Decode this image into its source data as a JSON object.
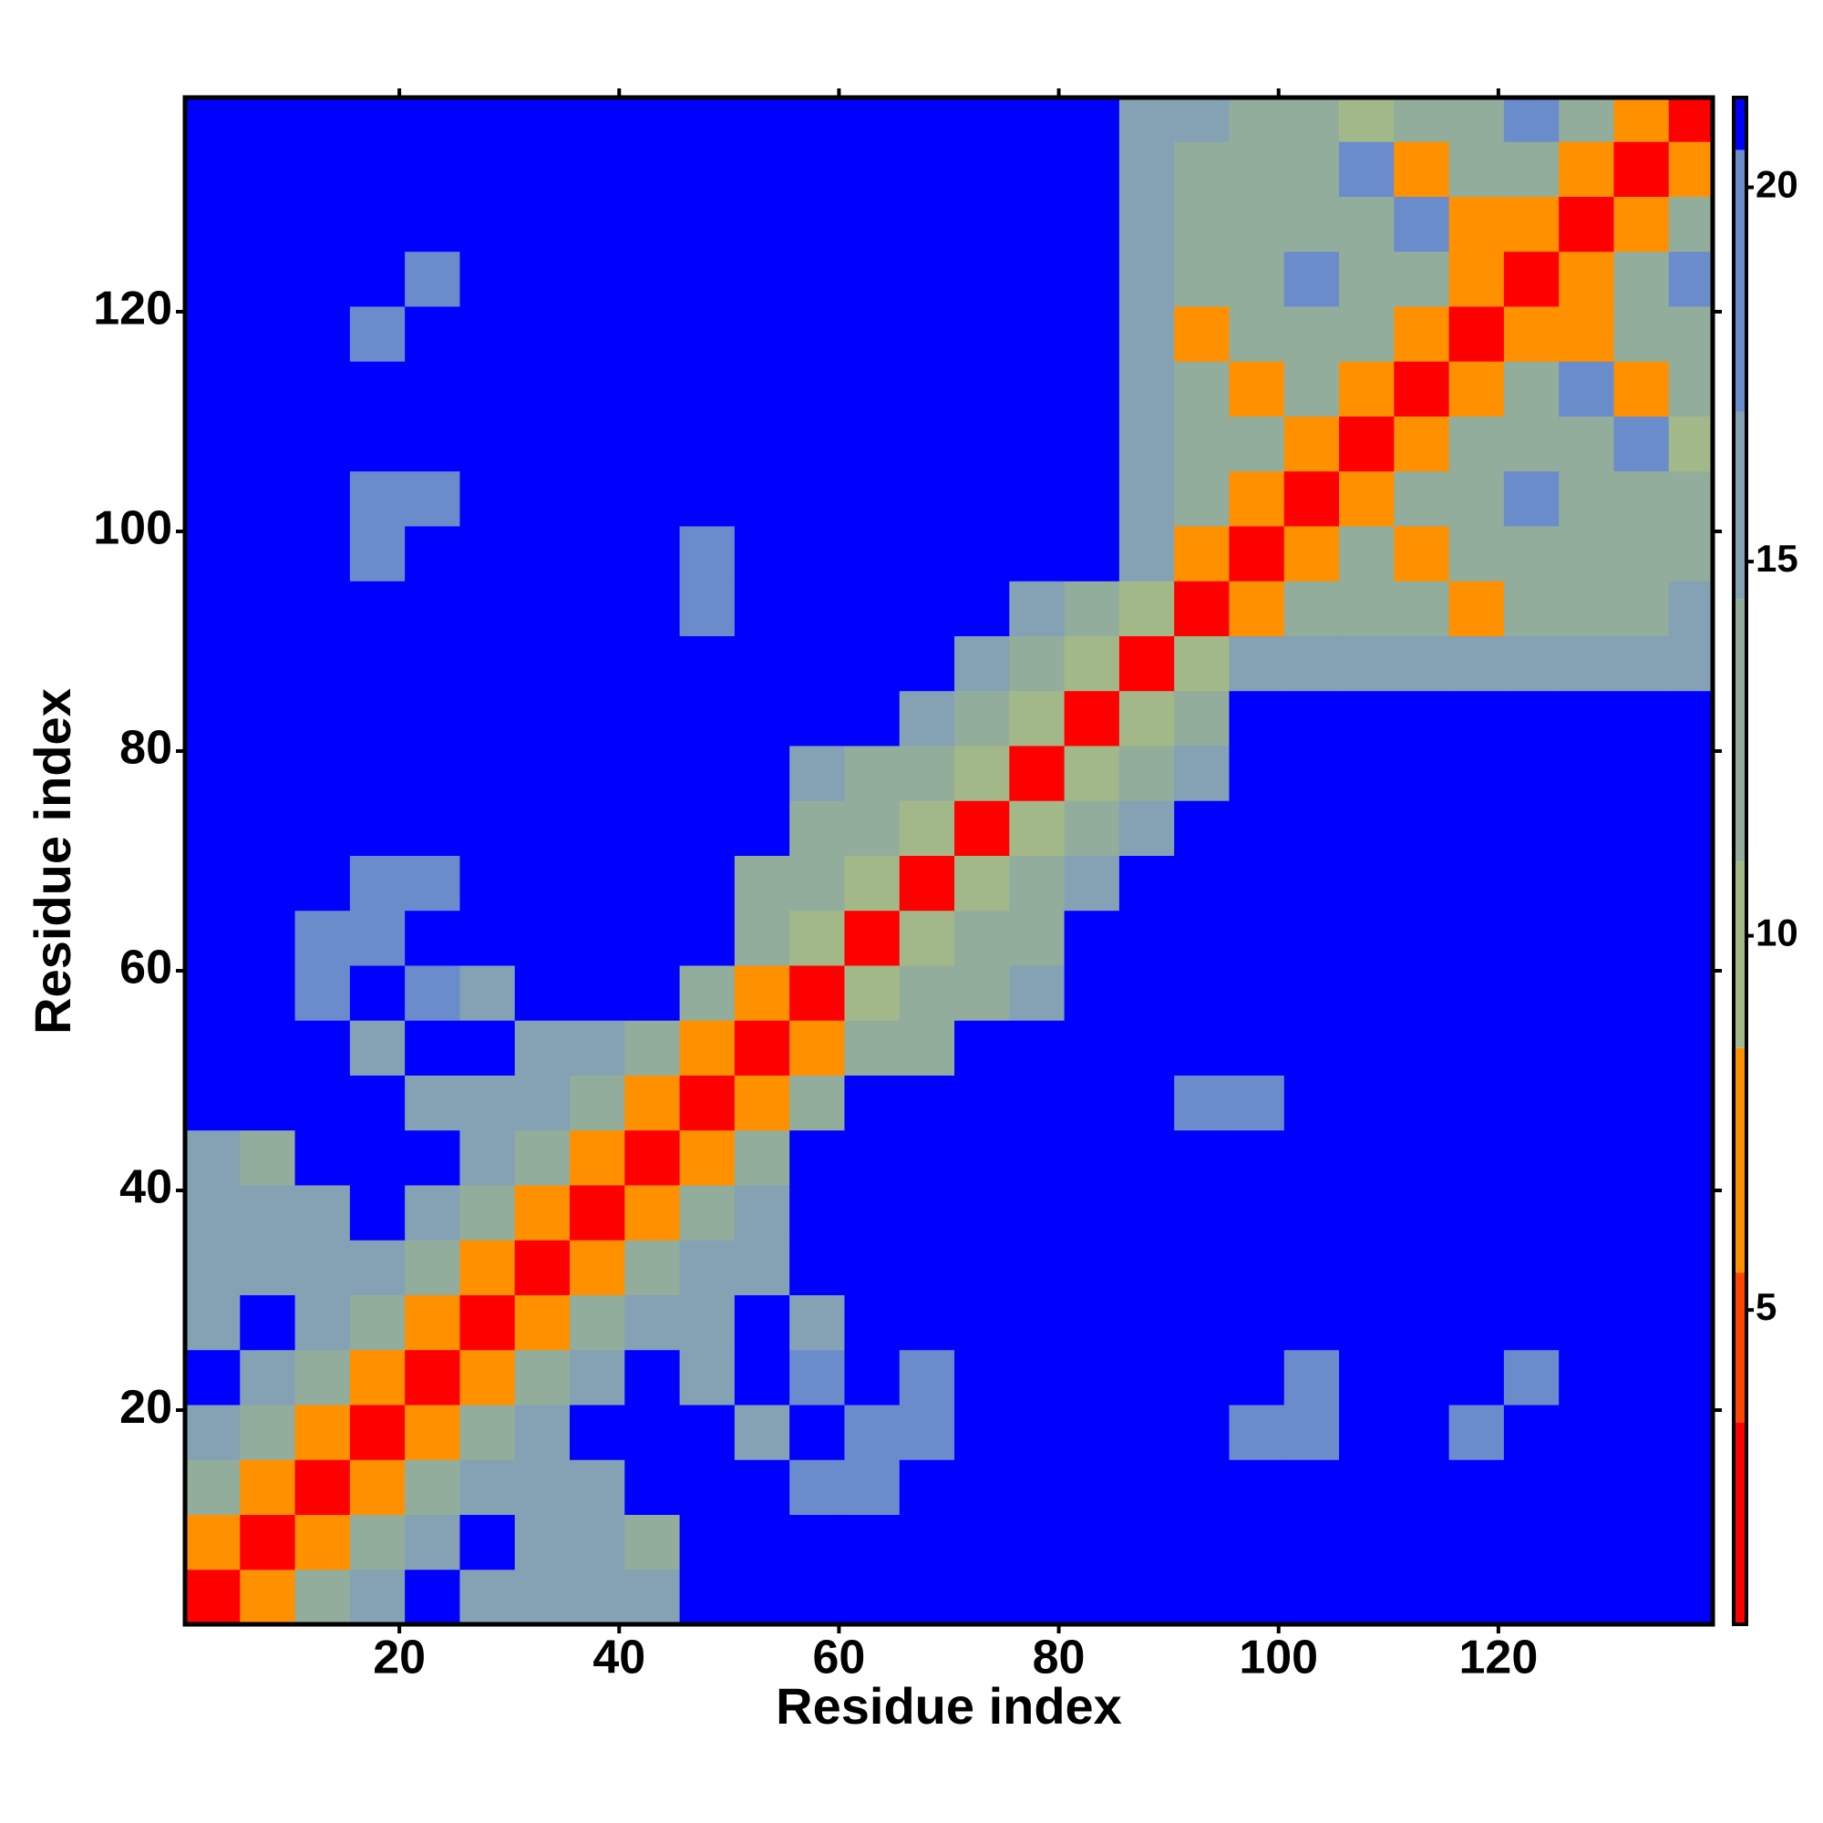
{
  "chart_data": {
    "type": "heatmap",
    "xlabel": "Residue index",
    "ylabel": "Residue index",
    "xlim": [
      0.5,
      139.5
    ],
    "ylim": [
      0.5,
      139.5
    ],
    "xticks": [
      20,
      40,
      60,
      80,
      100,
      120
    ],
    "yticks": [
      20,
      40,
      60,
      80,
      100,
      120
    ],
    "x_edges": [
      0.5,
      5.5,
      10.5,
      15.5,
      20.5,
      25.5,
      30.5,
      35.5,
      40.5,
      45.5,
      50.5,
      55.5,
      60.5,
      65.5,
      70.5,
      75.5,
      80.5,
      85.5,
      90.5,
      95.5,
      100.5,
      105.5,
      110.5,
      115.5,
      120.5,
      125.5,
      130.5,
      135.5,
      139.5
    ],
    "y_edges": [
      0.5,
      5.5,
      10.5,
      15.5,
      20.5,
      25.5,
      30.5,
      35.5,
      40.5,
      45.5,
      50.5,
      55.5,
      60.5,
      65.5,
      70.5,
      75.5,
      80.5,
      85.5,
      90.5,
      95.5,
      100.5,
      105.5,
      110.5,
      115.5,
      120.5,
      125.5,
      130.5,
      135.5,
      139.5
    ],
    "z": [
      [
        3,
        8,
        12,
        16,
        21,
        15,
        16,
        15,
        15,
        21,
        21,
        21,
        21,
        21,
        21,
        21,
        21,
        21,
        21,
        21,
        21,
        21,
        21,
        21,
        21,
        21,
        21,
        21
      ],
      [
        8,
        3,
        8,
        12,
        16,
        21,
        15,
        15,
        13,
        21,
        21,
        21,
        21,
        21,
        21,
        21,
        21,
        21,
        21,
        21,
        21,
        21,
        21,
        21,
        21,
        21,
        21,
        21
      ],
      [
        12,
        8,
        3,
        8,
        12,
        16,
        16,
        17,
        21,
        21,
        21,
        19,
        19,
        21,
        21,
        21,
        21,
        21,
        21,
        21,
        21,
        21,
        21,
        21,
        21,
        21,
        21,
        21
      ],
      [
        16,
        12,
        8,
        3,
        8,
        12,
        16,
        21,
        21,
        21,
        17,
        21,
        19,
        19,
        21,
        21,
        21,
        21,
        21,
        19,
        19,
        21,
        21,
        19,
        21,
        21,
        21,
        21
      ],
      [
        21,
        16,
        12,
        8,
        3,
        8,
        12,
        16,
        21,
        17,
        21,
        19,
        21,
        19,
        21,
        21,
        21,
        21,
        21,
        21,
        19,
        21,
        21,
        21,
        19,
        21,
        21,
        21
      ],
      [
        15,
        21,
        16,
        12,
        8,
        3,
        8,
        12,
        16,
        17,
        21,
        17,
        21,
        21,
        21,
        21,
        21,
        21,
        21,
        21,
        21,
        21,
        21,
        21,
        21,
        21,
        21,
        21
      ],
      [
        16,
        15,
        16,
        16,
        12,
        8,
        3,
        8,
        12,
        16,
        17,
        21,
        21,
        21,
        21,
        21,
        21,
        21,
        21,
        21,
        21,
        21,
        21,
        21,
        21,
        21,
        21,
        21
      ],
      [
        15,
        15,
        17,
        21,
        16,
        12,
        8,
        3,
        8,
        12,
        16,
        21,
        21,
        21,
        21,
        21,
        21,
        21,
        21,
        21,
        21,
        21,
        21,
        21,
        21,
        21,
        21,
        21
      ],
      [
        15,
        13,
        21,
        21,
        21,
        16,
        12,
        8,
        3,
        8,
        12,
        21,
        21,
        21,
        21,
        21,
        21,
        21,
        21,
        21,
        21,
        21,
        21,
        21,
        21,
        21,
        21,
        21
      ],
      [
        21,
        21,
        21,
        21,
        17,
        17,
        16,
        12,
        8,
        3,
        8,
        12,
        21,
        21,
        21,
        21,
        21,
        21,
        19,
        19,
        21,
        21,
        21,
        21,
        21,
        21,
        21,
        21
      ],
      [
        21,
        21,
        21,
        17,
        21,
        21,
        17,
        16,
        12,
        8,
        3,
        8,
        14,
        14,
        21,
        21,
        21,
        21,
        21,
        21,
        21,
        21,
        21,
        21,
        21,
        21,
        21,
        21
      ],
      [
        21,
        21,
        19,
        21,
        19,
        17,
        21,
        21,
        21,
        12,
        8,
        3,
        9,
        14,
        14,
        16,
        21,
        21,
        21,
        21,
        21,
        21,
        21,
        21,
        21,
        21,
        21,
        21
      ],
      [
        21,
        21,
        19,
        19,
        21,
        21,
        21,
        21,
        21,
        21,
        14,
        9,
        3,
        9,
        14,
        14,
        21,
        21,
        21,
        21,
        21,
        21,
        21,
        21,
        21,
        21,
        21,
        21
      ],
      [
        21,
        21,
        21,
        19,
        19,
        21,
        21,
        21,
        21,
        21,
        14,
        14,
        9,
        3,
        9,
        14,
        16,
        21,
        21,
        21,
        21,
        21,
        21,
        21,
        21,
        21,
        21,
        21
      ],
      [
        21,
        21,
        21,
        21,
        21,
        21,
        21,
        21,
        21,
        21,
        21,
        14,
        14,
        9,
        3,
        9,
        14,
        16,
        21,
        21,
        21,
        21,
        21,
        21,
        21,
        21,
        21,
        21
      ],
      [
        21,
        21,
        21,
        21,
        21,
        21,
        21,
        21,
        21,
        21,
        21,
        16,
        14,
        14,
        9,
        3,
        9,
        14,
        16,
        21,
        21,
        21,
        21,
        21,
        21,
        21,
        21,
        21
      ],
      [
        21,
        21,
        21,
        21,
        21,
        21,
        21,
        21,
        21,
        21,
        21,
        21,
        21,
        16,
        14,
        9,
        3,
        9,
        14,
        21,
        21,
        21,
        21,
        21,
        21,
        21,
        21,
        21
      ],
      [
        21,
        21,
        21,
        21,
        21,
        21,
        21,
        21,
        21,
        21,
        21,
        21,
        21,
        21,
        16,
        14,
        9,
        3,
        9,
        15,
        16,
        16,
        16,
        16,
        16,
        16,
        16,
        16
      ],
      [
        21,
        21,
        21,
        21,
        21,
        21,
        21,
        21,
        21,
        19,
        21,
        21,
        21,
        21,
        21,
        16,
        14,
        9,
        3,
        8,
        12,
        14,
        14,
        8,
        14,
        14,
        14,
        15
      ],
      [
        21,
        21,
        21,
        19,
        21,
        21,
        21,
        21,
        21,
        19,
        21,
        21,
        21,
        21,
        21,
        21,
        21,
        15,
        8,
        3,
        8,
        12,
        8,
        14,
        14,
        14,
        14,
        14
      ],
      [
        21,
        21,
        21,
        19,
        19,
        21,
        21,
        21,
        21,
        21,
        21,
        21,
        21,
        21,
        21,
        21,
        21,
        16,
        12,
        8,
        3,
        8,
        12,
        14,
        20,
        14,
        14,
        14
      ],
      [
        21,
        21,
        21,
        21,
        21,
        21,
        21,
        21,
        21,
        21,
        21,
        21,
        21,
        21,
        21,
        21,
        21,
        16,
        14,
        12,
        8,
        3,
        8,
        12,
        14,
        14,
        20,
        10
      ],
      [
        21,
        21,
        21,
        21,
        21,
        21,
        21,
        21,
        21,
        21,
        21,
        21,
        21,
        21,
        21,
        21,
        21,
        16,
        14,
        8,
        12,
        8,
        3,
        8,
        12,
        20,
        8,
        14
      ],
      [
        21,
        21,
        21,
        19,
        21,
        21,
        21,
        21,
        21,
        21,
        21,
        21,
        21,
        21,
        21,
        21,
        21,
        16,
        8,
        14,
        14,
        12,
        8,
        3,
        8,
        8,
        14,
        14
      ],
      [
        21,
        21,
        21,
        21,
        19,
        21,
        21,
        21,
        21,
        21,
        21,
        21,
        21,
        21,
        21,
        21,
        21,
        16,
        14,
        14,
        20,
        14,
        12,
        8,
        3,
        8,
        12,
        20
      ],
      [
        21,
        21,
        21,
        21,
        21,
        21,
        21,
        21,
        21,
        21,
        21,
        21,
        21,
        21,
        21,
        21,
        21,
        16,
        14,
        14,
        14,
        14,
        20,
        8,
        8,
        3,
        8,
        12
      ],
      [
        21,
        21,
        21,
        21,
        21,
        21,
        21,
        21,
        21,
        21,
        21,
        21,
        21,
        21,
        21,
        21,
        21,
        16,
        14,
        14,
        14,
        20,
        8,
        14,
        12,
        8,
        3,
        8
      ],
      [
        21,
        21,
        21,
        21,
        21,
        21,
        21,
        21,
        21,
        21,
        21,
        21,
        21,
        21,
        21,
        21,
        21,
        16,
        15,
        14,
        14,
        10,
        14,
        14,
        20,
        12,
        8,
        3
      ]
    ],
    "colorbar": {
      "zlim": [
        0.8,
        21.2
      ],
      "ticks": [
        5,
        10,
        15,
        20
      ],
      "levels": [
        {
          "max": 3.5,
          "color": "#ff0000"
        },
        {
          "max": 5.5,
          "color": "#ff4500"
        },
        {
          "max": 8.5,
          "color": "#ff9000"
        },
        {
          "max": 11,
          "color": "#a3b889"
        },
        {
          "max": 14.5,
          "color": "#92ad9c"
        },
        {
          "max": 17,
          "color": "#84a2b4"
        },
        {
          "max": 20.5,
          "color": "#6b8ccb"
        },
        {
          "max": 21.2,
          "color": "#0000ff"
        }
      ]
    }
  }
}
